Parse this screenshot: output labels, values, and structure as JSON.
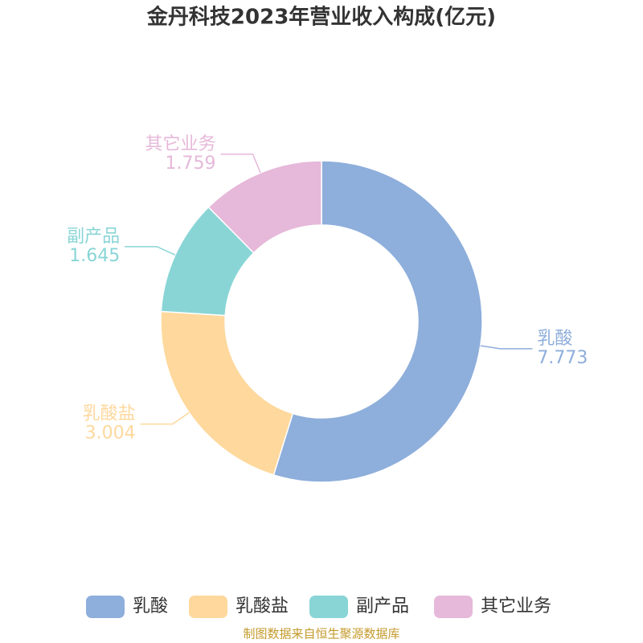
{
  "chart_data": {
    "type": "donut",
    "title": "金丹科技2023年营业收入构成(亿元)",
    "categories": [
      "乳酸",
      "乳酸盐",
      "副产品",
      "其它业务"
    ],
    "values": [
      7.773,
      3.004,
      1.645,
      1.759
    ],
    "colors": [
      "#8eaedb",
      "#fed89c",
      "#89d5d6",
      "#e6b8d9"
    ],
    "source": "制图数据来自恒生聚源数据库"
  }
}
